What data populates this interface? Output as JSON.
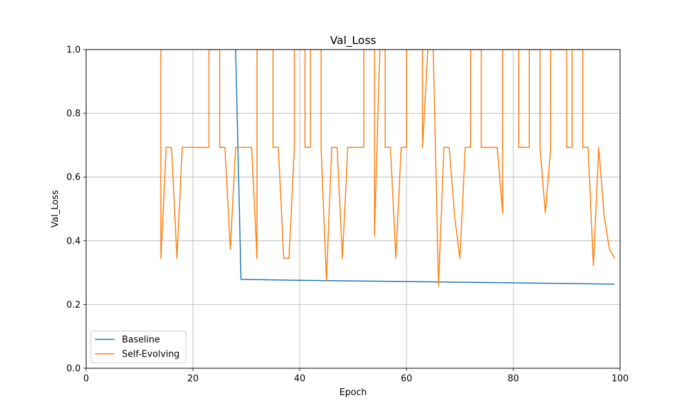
{
  "chart_data": {
    "type": "line",
    "title": "Val_Loss",
    "xlabel": "Epoch",
    "ylabel": "Val_Loss",
    "xlim": [
      0,
      100
    ],
    "ylim": [
      0.0,
      1.0
    ],
    "xticks": [
      0,
      20,
      40,
      60,
      80,
      100
    ],
    "yticks": [
      0.0,
      0.2,
      0.4,
      0.6,
      0.8,
      1.0
    ],
    "xtick_labels": [
      "0",
      "20",
      "40",
      "60",
      "80",
      "100"
    ],
    "ytick_labels": [
      "0.0",
      "0.2",
      "0.4",
      "0.6",
      "0.8",
      "1.0"
    ],
    "grid": true,
    "legend_position": "lower-left",
    "series": [
      {
        "name": "Baseline",
        "color": "#1f77b4",
        "x": [
          28,
          29,
          40,
          50,
          60,
          70,
          80,
          90,
          99
        ],
        "y": [
          1.0,
          0.279,
          0.276,
          0.274,
          0.272,
          0.27,
          0.268,
          0.266,
          0.264
        ]
      },
      {
        "name": "Self-Evolving",
        "color": "#ff7f0e",
        "x": [
          14,
          14,
          15,
          16,
          17,
          18,
          19,
          20,
          21,
          22,
          23,
          23,
          24,
          25,
          25,
          26,
          27,
          28,
          29,
          30,
          31,
          32,
          32,
          33,
          34,
          35,
          35,
          36,
          37,
          38,
          39,
          39,
          40,
          41,
          41,
          42,
          42,
          43,
          44,
          44,
          45,
          46,
          47,
          48,
          49,
          50,
          51,
          52,
          52,
          53,
          54,
          54,
          55,
          56,
          56,
          57,
          58,
          59,
          60,
          60,
          61,
          62,
          63,
          63,
          64,
          65,
          66,
          67,
          68,
          69,
          70,
          71,
          72,
          72,
          73,
          74,
          74,
          75,
          76,
          77,
          78,
          78,
          79,
          80,
          81,
          81,
          82,
          83,
          83,
          84,
          85,
          85,
          86,
          87,
          87,
          88,
          89,
          90,
          90,
          91,
          91,
          92,
          93,
          93,
          94,
          95,
          96,
          97,
          98,
          99
        ],
        "y": [
          1.0,
          0.345,
          0.693,
          0.693,
          0.345,
          0.693,
          0.693,
          0.693,
          0.693,
          0.693,
          0.693,
          1.0,
          1.0,
          1.0,
          0.693,
          0.693,
          0.373,
          0.693,
          0.693,
          0.693,
          0.693,
          0.345,
          1.0,
          1.0,
          1.0,
          1.0,
          0.693,
          0.693,
          0.345,
          0.345,
          0.693,
          1.0,
          1.0,
          1.0,
          0.693,
          0.693,
          1.0,
          1.0,
          1.0,
          0.693,
          0.275,
          0.693,
          0.693,
          0.345,
          0.693,
          0.693,
          0.693,
          0.693,
          1.0,
          1.0,
          1.0,
          0.415,
          1.0,
          1.0,
          0.693,
          0.693,
          0.345,
          0.693,
          0.693,
          1.0,
          1.0,
          1.0,
          1.0,
          0.693,
          1.0,
          1.0,
          0.258,
          0.693,
          0.693,
          0.478,
          0.345,
          0.693,
          0.693,
          1.0,
          1.0,
          1.0,
          0.693,
          0.693,
          0.693,
          0.693,
          0.487,
          1.0,
          1.0,
          1.0,
          1.0,
          0.693,
          0.693,
          0.693,
          1.0,
          1.0,
          1.0,
          0.693,
          0.487,
          0.693,
          1.0,
          1.0,
          1.0,
          1.0,
          0.693,
          0.693,
          1.0,
          1.0,
          1.0,
          0.693,
          0.693,
          0.322,
          0.693,
          0.481,
          0.373,
          0.345
        ]
      }
    ]
  }
}
